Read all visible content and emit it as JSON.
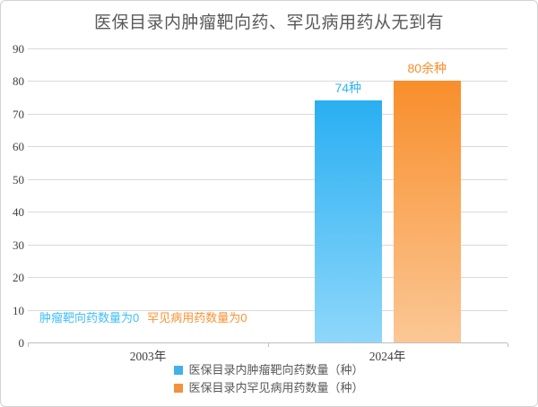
{
  "frame": {
    "background": "#ffffff",
    "border_color": "#d2d2d2"
  },
  "chart_data": {
    "type": "bar",
    "title": "医保目录内肿瘤靶向药、罕见病用药从无到有",
    "title_color": "#595959",
    "categories": [
      "2003年",
      "2024年"
    ],
    "series": [
      {
        "name": "医保目录内肿瘤靶向药数量（种）",
        "values": [
          0,
          74
        ],
        "data_labels": [
          "",
          "74种"
        ],
        "bar_color_top": "#29aff2",
        "bar_color_bottom": "#8ed7fa",
        "label_color": "#2fb5f5",
        "legend_color": "#41b1ea"
      },
      {
        "name": "医保目录内罕见病用药数量（种）",
        "values": [
          0,
          80
        ],
        "data_labels": [
          "",
          "80余种"
        ],
        "bar_color_top": "#f88e2b",
        "bar_color_bottom": "#fbc795",
        "label_color": "#f98e2c",
        "legend_color": "#f4913e"
      }
    ],
    "annotations": [
      {
        "text": "肿瘤靶向药数量为0",
        "color": "#3fbef7"
      },
      {
        "text": "罕见病用药数量为0",
        "color": "#fa9232"
      }
    ],
    "ylim": [
      0,
      90
    ],
    "yticks": [
      0,
      10,
      20,
      30,
      40,
      50,
      60,
      70,
      80,
      90
    ],
    "grid": true,
    "gridline_color": "#d9d9d9",
    "axis_color": "#bfbfbf",
    "tick_label_color": "#404040",
    "legend_position": "bottom"
  }
}
